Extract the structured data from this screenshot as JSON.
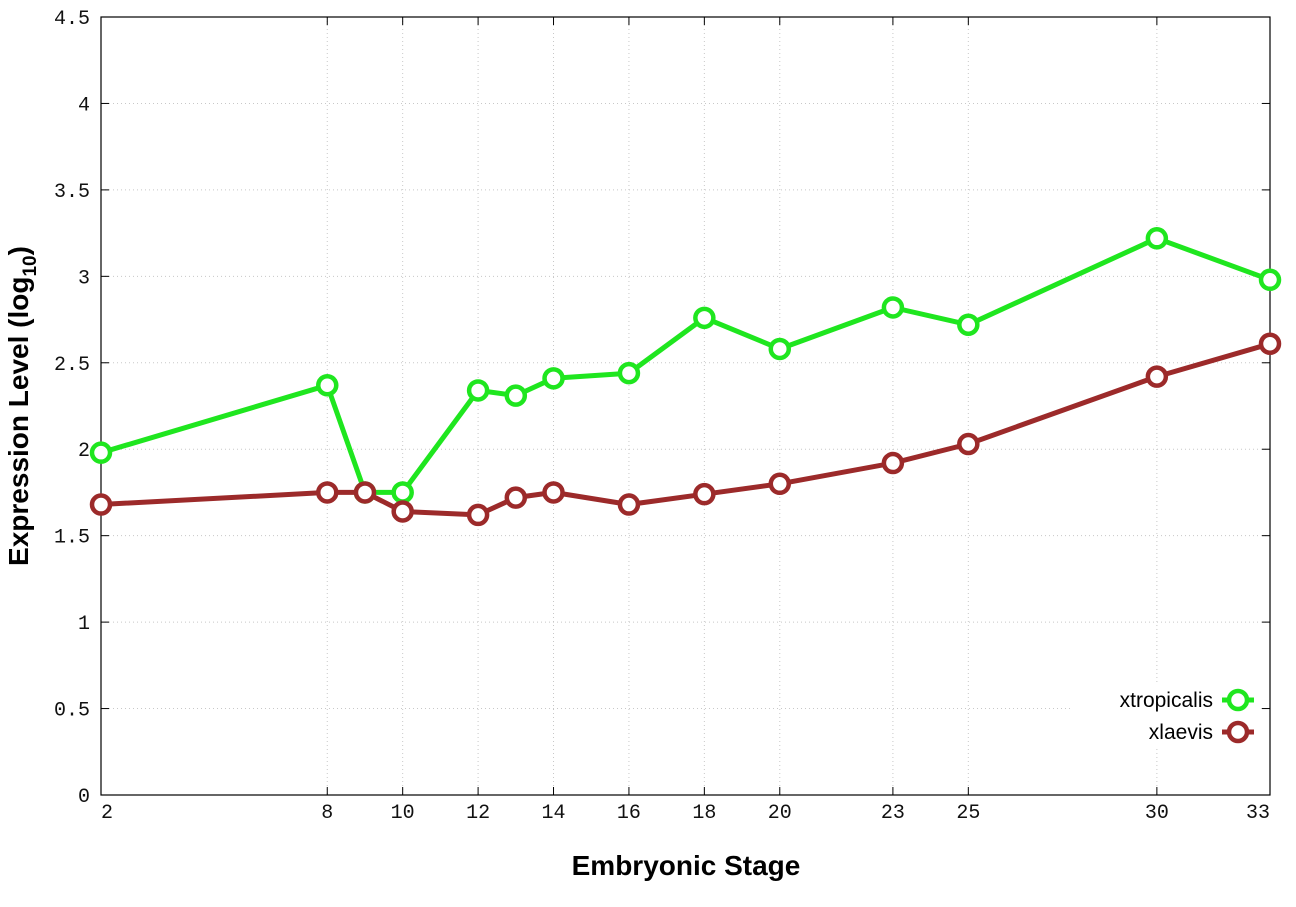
{
  "chart_data": {
    "type": "line",
    "xlabel": "Embryonic Stage",
    "ylabel": "Expression Level (log",
    "ylabel_subscript": "10",
    "ylabel_suffix": ")",
    "x": [
      2,
      8,
      9,
      10,
      12,
      13,
      14,
      16,
      18,
      20,
      23,
      25,
      30,
      33
    ],
    "x_tick_labels": [
      "2",
      "8",
      "10",
      "12",
      "14",
      "16",
      "18",
      "20",
      "23",
      "25",
      "30",
      "33"
    ],
    "xlim": [
      2,
      33
    ],
    "ylim": [
      0,
      4.5
    ],
    "y_tick_labels": [
      "0",
      "0.5",
      "1",
      "1.5",
      "2",
      "2.5",
      "3",
      "3.5",
      "4",
      "4.5"
    ],
    "grid": true,
    "legend_position": "bottom-right",
    "series": [
      {
        "name": "xtropicalis",
        "color": "#1fe61f",
        "values": [
          1.98,
          2.37,
          1.75,
          1.75,
          2.34,
          2.31,
          2.41,
          2.44,
          2.76,
          2.58,
          2.82,
          2.72,
          3.22,
          2.98
        ]
      },
      {
        "name": "xlaevis",
        "color": "#9c2a2a",
        "values": [
          1.68,
          1.75,
          1.75,
          1.64,
          1.62,
          1.72,
          1.75,
          1.68,
          1.74,
          1.8,
          1.92,
          2.03,
          2.42,
          2.61
        ]
      }
    ]
  }
}
